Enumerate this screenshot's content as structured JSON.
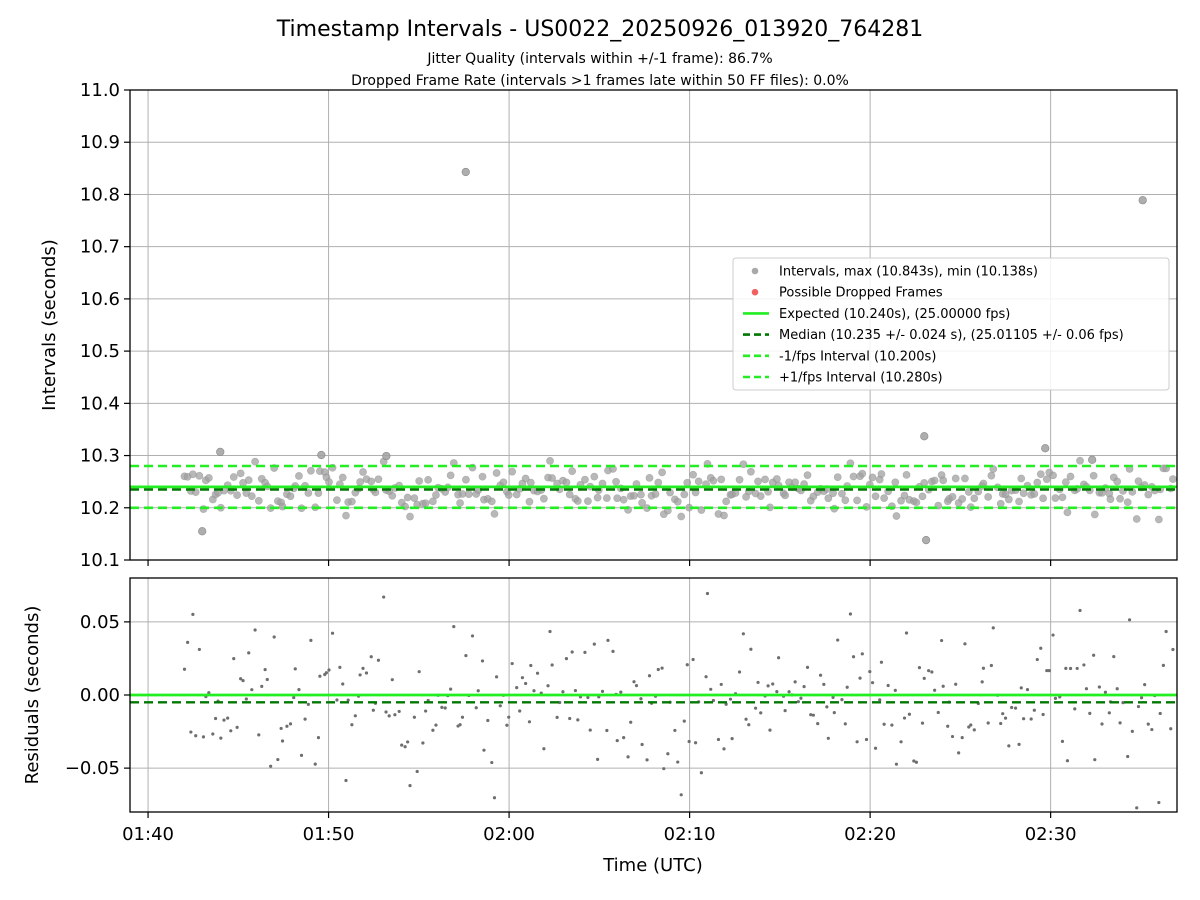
{
  "chart_data": [
    {
      "type": "scatter",
      "title": "Timestamp Intervals - US0022_20250926_013920_764281",
      "subtitle_lines": [
        "Jitter Quality (intervals within +/-1 frame): 86.7%",
        "Dropped Frame Rate (intervals >1 frames late within 50 FF files): 0.0%"
      ],
      "xlabel": "",
      "ylabel": "Intervals (seconds)",
      "xlim": [
        99,
        157
      ],
      "ylim": [
        10.1,
        11.0
      ],
      "yticks": [
        10.1,
        10.2,
        10.3,
        10.4,
        10.5,
        10.6,
        10.7,
        10.8,
        10.9,
        11.0
      ],
      "ytick_labels": [
        "10.1",
        "10.2",
        "10.3",
        "10.4",
        "10.5",
        "10.6",
        "10.7",
        "10.8",
        "10.9",
        "11.0"
      ],
      "grid": true,
      "colors": {
        "intervals": "#a0a0a0",
        "dropped": "#f05050",
        "expected": "#22ee22",
        "median": "#007700",
        "bounds": "#22ee22"
      },
      "series": [
        {
          "name": "Intervals, max (10.843s), min (10.138s)",
          "kind": "points",
          "x_range": [
            102.0,
            156.8
          ],
          "count": 320,
          "mean": 10.236,
          "spread": 0.024,
          "outliers": [
            [
              117.6,
              10.843
            ],
            [
              155.1,
              10.789
            ],
            [
              143.1,
              10.138
            ],
            [
              143.0,
              10.337
            ],
            [
              113.2,
              10.299
            ],
            [
              109.6,
              10.301
            ],
            [
              104.0,
              10.307
            ],
            [
              103.0,
              10.155
            ],
            [
              149.7,
              10.314
            ],
            [
              152.3,
              10.292
            ]
          ]
        },
        {
          "name": "Possible Dropped Frames",
          "kind": "points",
          "values": []
        },
        {
          "name": "Expected (10.240s), (25.00000 fps)",
          "kind": "hline",
          "value": 10.24
        },
        {
          "name": "Median (10.235 +/- 0.024 s), (25.01105 +/- 0.06 fps)",
          "kind": "hline",
          "value": 10.235
        },
        {
          "name": "-1/fps Interval (10.200s)",
          "kind": "hline",
          "value": 10.2
        },
        {
          "name": "+1/fps Interval (10.280s)",
          "kind": "hline",
          "value": 10.28
        }
      ],
      "legend_position": "center-right"
    },
    {
      "type": "scatter",
      "xlabel": "Time (UTC)",
      "ylabel": "Residuals (seconds)",
      "xlim": [
        99,
        157
      ],
      "ylim": [
        -0.08,
        0.08
      ],
      "yticks": [
        -0.05,
        0.0,
        0.05
      ],
      "ytick_labels": [
        "−0.05",
        "0.00",
        "0.05"
      ],
      "xticks": [
        100,
        110,
        120,
        130,
        140,
        150
      ],
      "xtick_labels": [
        "01:40",
        "01:50",
        "02:00",
        "02:10",
        "02:20",
        "02:30"
      ],
      "grid": true,
      "series": [
        {
          "name": "Residuals",
          "kind": "points",
          "x_range": [
            102.0,
            156.8
          ],
          "count": 320,
          "spread": 0.028
        },
        {
          "name": "Zero",
          "kind": "hline",
          "value": 0.0
        },
        {
          "name": "Median residual",
          "kind": "hline",
          "value": -0.005
        }
      ]
    }
  ]
}
